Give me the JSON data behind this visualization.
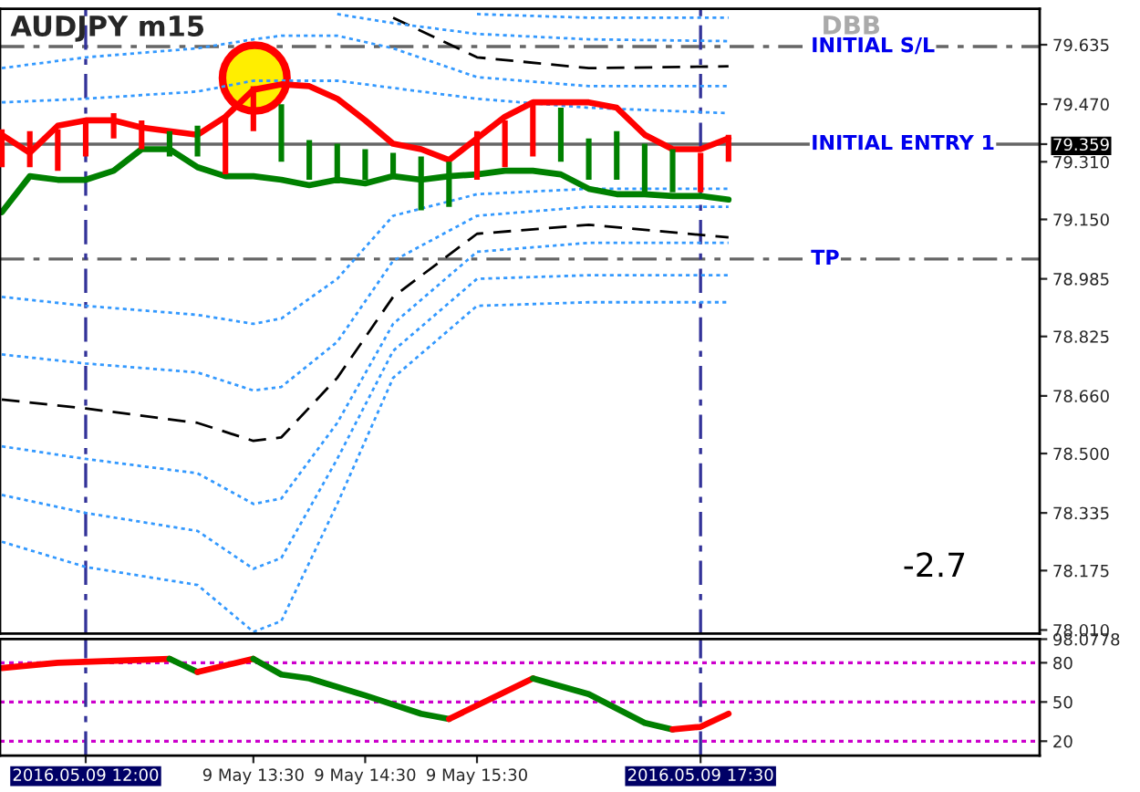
{
  "chart_data": [
    {
      "type": "line",
      "title": "AUDJPY m15",
      "annotations": [
        "DBB",
        "-2.7"
      ],
      "tick_labels": "y",
      "xlim": [
        "2016-05-09T11:14",
        "2016-05-09T20:32"
      ],
      "ylim": [
        78.0,
        79.735
      ],
      "yticks": [
        {
          "value": 78.01,
          "label": "78.010"
        },
        {
          "value": 78.175,
          "label": "78.175"
        },
        {
          "value": 78.335,
          "label": "78.335"
        },
        {
          "value": 78.5,
          "label": "78.500"
        },
        {
          "value": 78.66,
          "label": "78.660"
        },
        {
          "value": 78.825,
          "label": "78.825"
        },
        {
          "value": 78.985,
          "label": "78.985"
        },
        {
          "value": 79.15,
          "label": "79.150"
        },
        {
          "value": 79.31,
          "label": "79.310"
        },
        {
          "value": 79.359,
          "label": "79.359"
        },
        {
          "value": 79.47,
          "label": "79.470"
        },
        {
          "value": 79.635,
          "label": "79.635"
        }
      ],
      "ref_lines": [
        {
          "axis": "y",
          "value": 79.63,
          "label": "INITIAL S/L",
          "color": "#666666",
          "line_style": "dashdot"
        },
        {
          "axis": "y",
          "value": 79.359,
          "label": "INITIAL ENTRY 1",
          "color": "#666666",
          "line_style": "solid"
        },
        {
          "axis": "y",
          "value": 79.04,
          "label": "TP",
          "color": "#666666",
          "line_style": "dashdot"
        },
        {
          "axis": "x",
          "value": "2016-05-09T12:00",
          "label": null,
          "color": "#333399",
          "line_style": "dashdot"
        },
        {
          "axis": "x",
          "value": "2016-05-09T17:30",
          "label": null,
          "color": "#333399",
          "line_style": "dashdot"
        }
      ],
      "series": [
        {
          "type": "line",
          "color": "#3399ff",
          "line_style": "dotted",
          "x": [
            "2016-05-09T11:15",
            "2016-05-09T12:00",
            "2016-05-09T13:00",
            "2016-05-09T13:30",
            "2016-05-09T13:45",
            "2016-05-09T14:15",
            "2016-05-09T14:45",
            "2016-05-09T15:30",
            "2016-05-09T16:30",
            "2016-05-09T17:45"
          ],
          "values": [
            78.935,
            78.91,
            78.885,
            78.86,
            78.875,
            78.985,
            79.16,
            79.22,
            79.235,
            79.235
          ]
        },
        {
          "type": "line",
          "color": "#3399ff",
          "line_style": "dotted",
          "x": [
            "2016-05-09T11:15",
            "2016-05-09T12:00",
            "2016-05-09T13:00",
            "2016-05-09T13:30",
            "2016-05-09T13:45",
            "2016-05-09T14:15",
            "2016-05-09T14:45",
            "2016-05-09T15:30",
            "2016-05-09T16:30",
            "2016-05-09T17:45"
          ],
          "values": [
            78.775,
            78.75,
            78.725,
            78.675,
            78.685,
            78.81,
            79.035,
            79.16,
            79.185,
            79.185
          ]
        },
        {
          "type": "line",
          "color": "#000000",
          "line_style": "dashed",
          "x": [
            "2016-05-09T11:15",
            "2016-05-09T12:00",
            "2016-05-09T13:00",
            "2016-05-09T13:30",
            "2016-05-09T13:45",
            "2016-05-09T14:15",
            "2016-05-09T14:45",
            "2016-05-09T15:30",
            "2016-05-09T16:30",
            "2016-05-09T17:45"
          ],
          "values": [
            78.65,
            78.625,
            78.585,
            78.535,
            78.545,
            78.71,
            78.935,
            79.11,
            79.135,
            79.1
          ]
        },
        {
          "type": "line",
          "color": "#3399ff",
          "line_style": "dotted",
          "x": [
            "2016-05-09T11:15",
            "2016-05-09T12:00",
            "2016-05-09T13:00",
            "2016-05-09T13:30",
            "2016-05-09T13:45",
            "2016-05-09T14:15",
            "2016-05-09T14:45",
            "2016-05-09T15:30",
            "2016-05-09T16:30",
            "2016-05-09T17:45"
          ],
          "values": [
            78.52,
            78.485,
            78.445,
            78.36,
            78.375,
            78.585,
            78.86,
            79.06,
            79.085,
            79.085
          ]
        },
        {
          "type": "line",
          "color": "#3399ff",
          "line_style": "dotted",
          "x": [
            "2016-05-09T11:15",
            "2016-05-09T12:00",
            "2016-05-09T13:00",
            "2016-05-09T13:30",
            "2016-05-09T13:45",
            "2016-05-09T14:15",
            "2016-05-09T14:45",
            "2016-05-09T15:30",
            "2016-05-09T16:30",
            "2016-05-09T17:45"
          ],
          "values": [
            78.385,
            78.335,
            78.285,
            78.18,
            78.21,
            78.485,
            78.785,
            78.985,
            78.995,
            78.995
          ]
        },
        {
          "type": "line",
          "color": "#3399ff",
          "line_style": "dotted",
          "x": [
            "2016-05-09T11:15",
            "2016-05-09T12:00",
            "2016-05-09T13:00",
            "2016-05-09T13:30",
            "2016-05-09T13:45",
            "2016-05-09T14:15",
            "2016-05-09T14:45",
            "2016-05-09T15:30",
            "2016-05-09T16:30",
            "2016-05-09T17:45"
          ],
          "values": [
            78.255,
            78.185,
            78.135,
            78.005,
            78.035,
            78.36,
            78.71,
            78.91,
            78.92,
            78.92
          ]
        },
        {
          "type": "line",
          "color": "#3399ff",
          "line_style": "dotted",
          "x": [
            "2016-05-09T11:15",
            "2016-05-09T12:00",
            "2016-05-09T13:00",
            "2016-05-09T13:30",
            "2016-05-09T13:45",
            "2016-05-09T14:15",
            "2016-05-09T14:45",
            "2016-05-09T15:30",
            "2016-05-09T16:30",
            "2016-05-09T17:45"
          ],
          "values": [
            79.475,
            79.485,
            79.505,
            79.535,
            79.535,
            79.535,
            79.515,
            79.485,
            79.46,
            79.445
          ]
        },
        {
          "type": "line",
          "color": "#3399ff",
          "line_style": "dotted",
          "x": [
            "2016-05-09T11:15",
            "2016-05-09T12:00",
            "2016-05-09T13:00",
            "2016-05-09T13:30",
            "2016-05-09T13:45",
            "2016-05-09T14:15",
            "2016-05-09T14:45",
            "2016-05-09T15:30",
            "2016-05-09T16:30",
            "2016-05-09T17:45"
          ],
          "values": [
            79.57,
            79.6,
            79.625,
            79.65,
            79.66,
            79.66,
            79.625,
            79.545,
            79.52,
            79.52
          ]
        },
        {
          "type": "line",
          "color": "#000000",
          "line_style": "dashed",
          "x": [
            "2016-05-09T14:45",
            "2016-05-09T15:30",
            "2016-05-09T16:30",
            "2016-05-09T17:45"
          ],
          "values": [
            79.71,
            79.6,
            79.57,
            79.575
          ]
        },
        {
          "type": "line",
          "color": "#3399ff",
          "line_style": "dotted",
          "x": [
            "2016-05-09T14:15",
            "2016-05-09T14:45",
            "2016-05-09T15:30",
            "2016-05-09T16:30",
            "2016-05-09T17:45"
          ],
          "values": [
            79.72,
            79.695,
            79.665,
            79.65,
            79.645
          ]
        },
        {
          "type": "line",
          "color": "#3399ff",
          "line_style": "dotted",
          "x": [
            "2016-05-09T15:30",
            "2016-05-09T16:30",
            "2016-05-09T17:45"
          ],
          "values": [
            79.72,
            79.71,
            79.71
          ]
        },
        {
          "type": "bar",
          "x": [
            "2016-05-09T11:15",
            "2016-05-09T11:30",
            "2016-05-09T11:45",
            "2016-05-09T12:00",
            "2016-05-09T12:15",
            "2016-05-09T12:30",
            "2016-05-09T12:45",
            "2016-05-09T13:00",
            "2016-05-09T13:15",
            "2016-05-09T13:30",
            "2016-05-09T13:45",
            "2016-05-09T14:00",
            "2016-05-09T14:15",
            "2016-05-09T14:30",
            "2016-05-09T14:45",
            "2016-05-09T15:00",
            "2016-05-09T15:15",
            "2016-05-09T15:30",
            "2016-05-09T15:45",
            "2016-05-09T16:00",
            "2016-05-09T16:15",
            "2016-05-09T16:30",
            "2016-05-09T16:45",
            "2016-05-09T17:00",
            "2016-05-09T17:15",
            "2016-05-09T17:30",
            "2016-05-09T17:45"
          ],
          "base": [
            79.295,
            79.295,
            79.285,
            79.325,
            79.375,
            79.345,
            79.325,
            79.325,
            79.275,
            79.395,
            79.31,
            79.26,
            79.25,
            79.26,
            79.275,
            79.175,
            79.185,
            79.26,
            79.295,
            79.325,
            79.31,
            79.26,
            79.26,
            79.225,
            79.225,
            79.225,
            79.31
          ],
          "values": [
            0.105,
            0.1,
            0.115,
            0.1,
            0.07,
            0.08,
            0.07,
            0.085,
            0.16,
            0.125,
            0.16,
            0.11,
            0.11,
            0.085,
            0.06,
            0.15,
            0.125,
            0.135,
            0.13,
            0.15,
            0.15,
            0.115,
            0.135,
            0.135,
            0.12,
            0.11,
            0.075
          ],
          "colors": [
            "#ff0000",
            "#ff0000",
            "#ff0000",
            "#ff0000",
            "#ff0000",
            "#ff0000",
            "#008000",
            "#008000",
            "#ff0000",
            "#ff0000",
            "#008000",
            "#008000",
            "#008000",
            "#008000",
            "#008000",
            "#008000",
            "#008000",
            "#ff0000",
            "#ff0000",
            "#ff0000",
            "#008000",
            "#008000",
            "#008000",
            "#008000",
            "#008000",
            "#ff0000",
            "#ff0000"
          ]
        },
        {
          "type": "line",
          "color": "#ff0000",
          "line_style": "solid",
          "x": [
            "2016-05-09T11:15",
            "2016-05-09T11:30",
            "2016-05-09T11:45",
            "2016-05-09T12:00",
            "2016-05-09T12:15",
            "2016-05-09T12:30",
            "2016-05-09T12:45",
            "2016-05-09T13:00",
            "2016-05-09T13:15",
            "2016-05-09T13:30",
            "2016-05-09T13:45",
            "2016-05-09T14:00",
            "2016-05-09T14:15",
            "2016-05-09T14:30",
            "2016-05-09T14:45",
            "2016-05-09T15:00",
            "2016-05-09T15:15",
            "2016-05-09T15:30",
            "2016-05-09T15:45",
            "2016-05-09T16:00",
            "2016-05-09T16:15",
            "2016-05-09T16:30",
            "2016-05-09T16:45",
            "2016-05-09T17:00",
            "2016-05-09T17:15",
            "2016-05-09T17:30",
            "2016-05-09T17:45"
          ],
          "values": [
            79.385,
            79.335,
            79.41,
            79.425,
            79.425,
            79.405,
            79.395,
            79.385,
            79.435,
            79.51,
            79.525,
            79.52,
            79.485,
            79.425,
            79.36,
            79.345,
            79.315,
            79.375,
            79.435,
            79.475,
            79.475,
            79.475,
            79.46,
            79.385,
            79.345,
            79.345,
            79.375
          ]
        },
        {
          "type": "line",
          "color": "#008000",
          "line_style": "solid",
          "x": [
            "2016-05-09T11:15",
            "2016-05-09T11:30",
            "2016-05-09T11:45",
            "2016-05-09T12:00",
            "2016-05-09T12:15",
            "2016-05-09T12:30",
            "2016-05-09T12:45",
            "2016-05-09T13:00",
            "2016-05-09T13:15",
            "2016-05-09T13:30",
            "2016-05-09T13:45",
            "2016-05-09T14:00",
            "2016-05-09T14:15",
            "2016-05-09T14:30",
            "2016-05-09T14:45",
            "2016-05-09T15:00",
            "2016-05-09T15:15",
            "2016-05-09T15:30",
            "2016-05-09T15:45",
            "2016-05-09T16:00",
            "2016-05-09T16:15",
            "2016-05-09T16:30",
            "2016-05-09T16:45",
            "2016-05-09T17:00",
            "2016-05-09T17:15",
            "2016-05-09T17:30",
            "2016-05-09T17:45"
          ],
          "values": [
            79.17,
            79.27,
            79.26,
            79.26,
            79.285,
            79.345,
            79.345,
            79.295,
            79.27,
            79.27,
            79.26,
            79.245,
            79.26,
            79.25,
            79.27,
            79.26,
            79.27,
            79.275,
            79.285,
            79.285,
            79.275,
            79.235,
            79.22,
            79.22,
            79.215,
            79.215,
            79.205
          ]
        }
      ]
    },
    {
      "type": "line",
      "xlim": [
        "2016-05-09T11:14",
        "2016-05-09T20:32"
      ],
      "ylim": [
        9,
        98.0778
      ],
      "yticks": [
        20,
        50,
        80,
        {
          "value": 98.0778,
          "label": "98.0778"
        }
      ],
      "xticks": [
        {
          "value": "2016-05-09T12:00",
          "label": "2016.05.09 12:00"
        },
        {
          "value": "2016-05-09T13:30",
          "label": "9 May 13:30"
        },
        {
          "value": "2016-05-09T14:30",
          "label": "9 May 14:30"
        },
        {
          "value": "2016-05-09T15:30",
          "label": "9 May 15:30"
        },
        {
          "value": "2016-05-09T17:30",
          "label": "2016.05.09 17:30"
        }
      ],
      "ref_lines": [
        {
          "axis": "y",
          "value": 20,
          "label": null,
          "color": "#cc00cc",
          "line_style": "dotted"
        },
        {
          "axis": "y",
          "value": 50,
          "label": null,
          "color": "#cc00cc",
          "line_style": "dotted"
        },
        {
          "axis": "y",
          "value": 80,
          "label": null,
          "color": "#cc00cc",
          "line_style": "dotted"
        },
        {
          "axis": "x",
          "value": "2016-05-09T12:00",
          "label": null,
          "color": "#333399",
          "line_style": "dashdot"
        },
        {
          "axis": "x",
          "value": "2016-05-09T17:30",
          "label": null,
          "color": "#333399",
          "line_style": "dashdot"
        }
      ],
      "series": [
        {
          "color": "#ff0000",
          "x": [
            "2016-05-09T11:15",
            "2016-05-09T11:45",
            "2016-05-09T12:45"
          ],
          "values": [
            76,
            80,
            83
          ]
        },
        {
          "color": "#008000",
          "x": [
            "2016-05-09T12:45",
            "2016-05-09T13:00"
          ],
          "values": [
            83,
            73
          ]
        },
        {
          "color": "#ff0000",
          "x": [
            "2016-05-09T13:00",
            "2016-05-09T13:30"
          ],
          "values": [
            73,
            83
          ]
        },
        {
          "color": "#008000",
          "x": [
            "2016-05-09T13:30",
            "2016-05-09T13:45",
            "2016-05-09T14:00",
            "2016-05-09T14:30",
            "2016-05-09T15:00",
            "2016-05-09T15:15"
          ],
          "values": [
            83,
            71,
            68,
            55,
            41,
            37
          ]
        },
        {
          "color": "#ff0000",
          "x": [
            "2016-05-09T15:15",
            "2016-05-09T16:00"
          ],
          "values": [
            37,
            68
          ]
        },
        {
          "color": "#008000",
          "x": [
            "2016-05-09T16:00",
            "2016-05-09T16:30",
            "2016-05-09T17:00",
            "2016-05-09T17:15"
          ],
          "values": [
            68,
            56,
            34,
            29
          ]
        },
        {
          "color": "#ff0000",
          "x": [
            "2016-05-09T17:15",
            "2016-05-09T17:30",
            "2016-05-09T17:45"
          ],
          "values": [
            29,
            31,
            41
          ]
        }
      ]
    }
  ]
}
